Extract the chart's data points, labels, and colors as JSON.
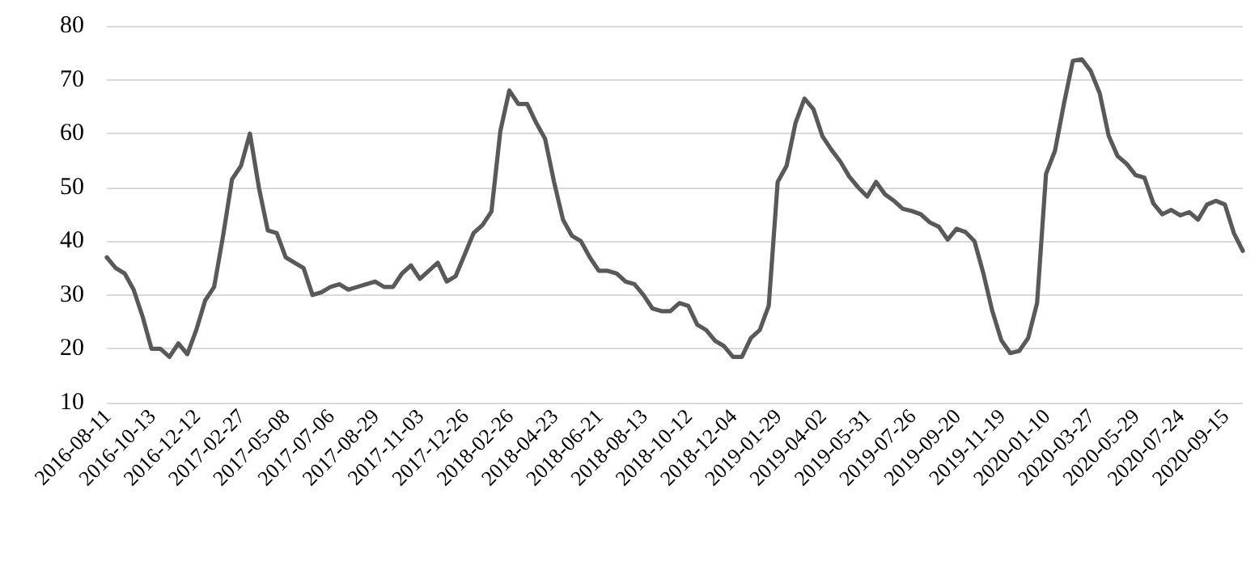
{
  "chart_data": {
    "type": "line",
    "categories": [
      "2016-08-11",
      null,
      null,
      null,
      null,
      "2016-10-13",
      null,
      null,
      null,
      null,
      "2016-12-12",
      null,
      null,
      null,
      null,
      "2017-02-27",
      null,
      null,
      null,
      null,
      "2017-05-08",
      null,
      null,
      null,
      null,
      "2017-07-06",
      null,
      null,
      null,
      null,
      "2017-08-29",
      null,
      null,
      null,
      null,
      "2017-11-03",
      null,
      null,
      null,
      null,
      "2017-12-26",
      null,
      null,
      null,
      null,
      "2018-02-26",
      null,
      null,
      null,
      null,
      "2018-04-23",
      null,
      null,
      null,
      null,
      "2018-06-21",
      null,
      null,
      null,
      null,
      "2018-08-13",
      null,
      null,
      null,
      null,
      "2018-10-12",
      null,
      null,
      null,
      null,
      "2018-12-04",
      null,
      null,
      null,
      null,
      "2019-01-29",
      null,
      null,
      null,
      null,
      "2019-04-02",
      null,
      null,
      null,
      null,
      "2019-05-31",
      null,
      null,
      null,
      null,
      "2019-07-26",
      null,
      null,
      null,
      null,
      "2019-09-20",
      null,
      null,
      null,
      null,
      "2019-11-19",
      null,
      null,
      null,
      null,
      "2020-01-10",
      null,
      null,
      null,
      null,
      "2020-03-27",
      null,
      null,
      null,
      null,
      "2020-05-29",
      null,
      null,
      null,
      null,
      "2020-07-24",
      null,
      null,
      null,
      null,
      "2020-09-15",
      null,
      null
    ],
    "series": [
      {
        "color": "#595959",
        "values": [
          37,
          35,
          34,
          31,
          26,
          20,
          20,
          18.5,
          21,
          19,
          23.5,
          29,
          31.5,
          41,
          51.5,
          54,
          60,
          50,
          42,
          41.5,
          37,
          36,
          35,
          30,
          30.5,
          31.5,
          32,
          31,
          31.5,
          32,
          32.5,
          31.5,
          31.5,
          34,
          35.5,
          33,
          34.5,
          36,
          32.5,
          33.5,
          37.5,
          41.5,
          43,
          45.5,
          60.5,
          68,
          65.5,
          65.5,
          62,
          59,
          51,
          44,
          41,
          40,
          37,
          34.5,
          34.5,
          34,
          32.5,
          32,
          30,
          27.5,
          27,
          27,
          28.5,
          28,
          24.5,
          23.5,
          21.5,
          20.5,
          18.5,
          18.5,
          22,
          23.5,
          28,
          51,
          54,
          62,
          66.5,
          64.5,
          59.5,
          57,
          54.8,
          52,
          50,
          48.3,
          51,
          48.7,
          47.5,
          46,
          45.6,
          45,
          43.5,
          42.7,
          40.3,
          42.3,
          41.7,
          40,
          34,
          27,
          21.6,
          19.2,
          19.6,
          22,
          28.5,
          52.5,
          56.8,
          65.5,
          73.5,
          73.8,
          71.6,
          67.5,
          59.6,
          55.8,
          54.4,
          52.3,
          51.8,
          47,
          45,
          45.8,
          44.8,
          45.4,
          44,
          46.8,
          47.5,
          46.8,
          41.5,
          38.2
        ]
      }
    ],
    "ylim": [
      10,
      80
    ],
    "yticks": [
      10,
      20,
      30,
      40,
      50,
      60,
      70,
      80
    ],
    "grid": "y",
    "marker": "none",
    "line_style": "solid"
  }
}
